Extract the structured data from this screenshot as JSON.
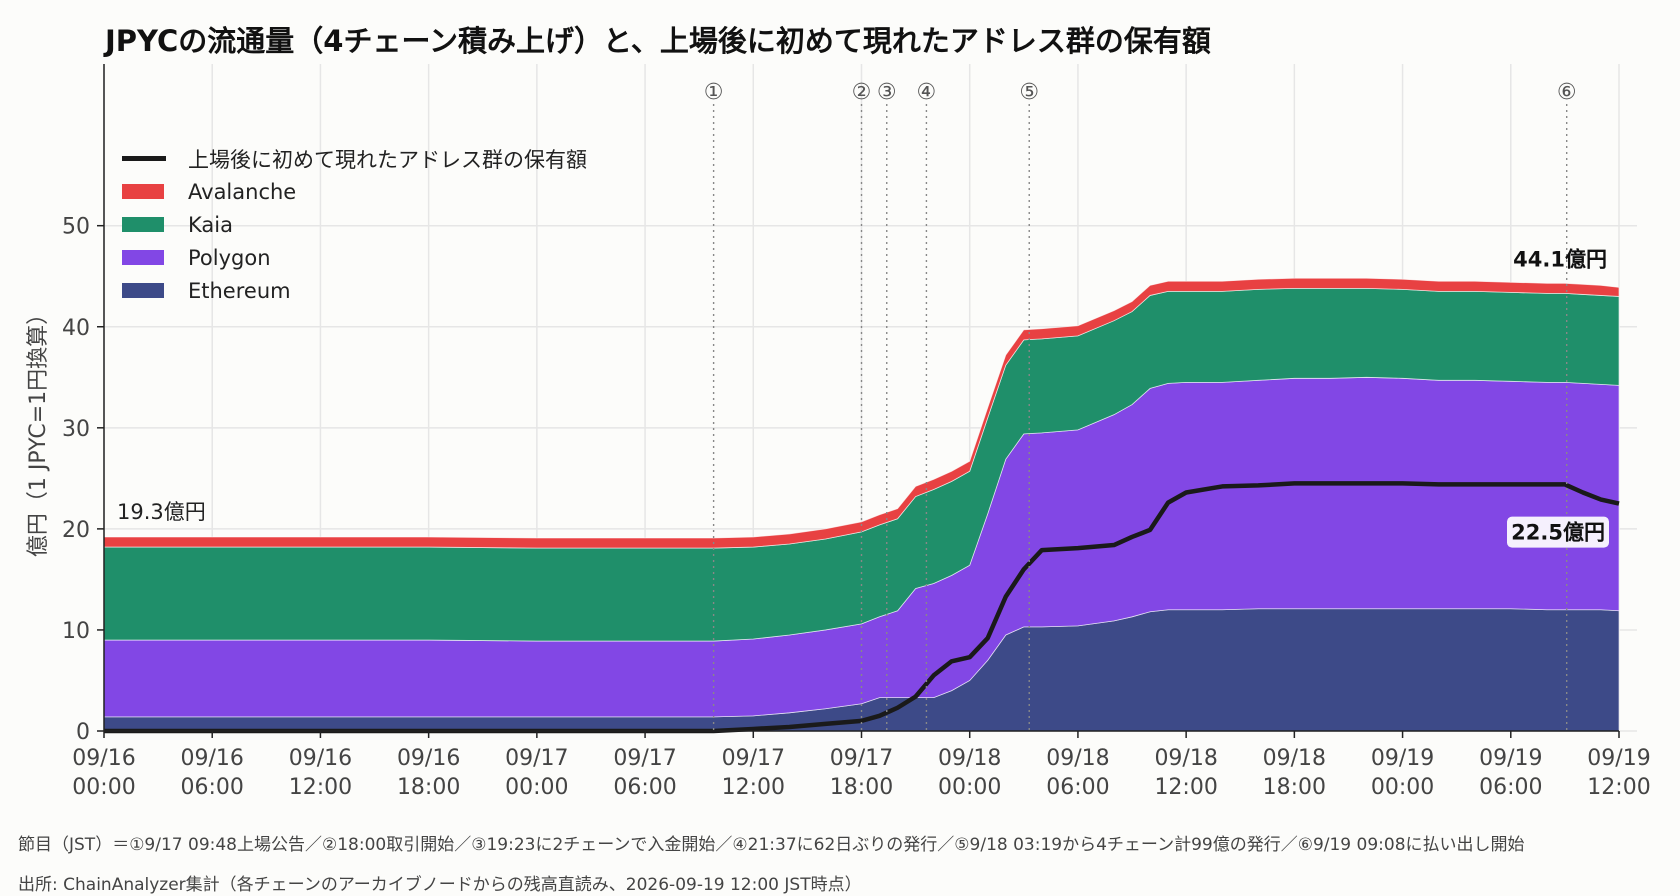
{
  "title": "JPYCの流通量（4チェーン積み上げ）と、上場後に初めて現れたアドレス群の保有額",
  "ylabel": "億円（1 JPYC=1円換算）",
  "footnote_events": "節目（JST）＝①9/17 09:48上場公告／②18:00取引開始／③19:23に2チェーンで入金開始／④21:37に62日ぶりの発行／⑤9/18 03:19から4チェーン計99億の発行／⑥9/19 09:08に払い出し開始",
  "footnote_source": "出所: ChainAnalyzer集計（各チェーンのアーカイブノードからの残高直読み、2026-09-19 12:00 JST時点）",
  "colors": {
    "ethereum": "#3d4a88",
    "polygon": "#8247e5",
    "kaia": "#1f8f6a",
    "avalanche": "#e84142",
    "newaddr": "#1a1a1a",
    "grid": "#e6e6e6"
  },
  "chart_data": {
    "type": "area",
    "stacked": true,
    "x_unit": "hours since 09/16 00:00 JST",
    "xlim": [
      0,
      84
    ],
    "ylim": [
      0,
      66
    ],
    "yticks": [
      0,
      10,
      20,
      30,
      40,
      50
    ],
    "xticks": [
      {
        "h": 0,
        "line1": "09/16",
        "line2": "00:00"
      },
      {
        "h": 6,
        "line1": "09/16",
        "line2": "06:00"
      },
      {
        "h": 12,
        "line1": "09/16",
        "line2": "12:00"
      },
      {
        "h": 18,
        "line1": "09/16",
        "line2": "18:00"
      },
      {
        "h": 24,
        "line1": "09/17",
        "line2": "00:00"
      },
      {
        "h": 30,
        "line1": "09/17",
        "line2": "06:00"
      },
      {
        "h": 36,
        "line1": "09/17",
        "line2": "12:00"
      },
      {
        "h": 42,
        "line1": "09/17",
        "line2": "18:00"
      },
      {
        "h": 48,
        "line1": "09/18",
        "line2": "00:00"
      },
      {
        "h": 54,
        "line1": "09/18",
        "line2": "06:00"
      },
      {
        "h": 60,
        "line1": "09/18",
        "line2": "12:00"
      },
      {
        "h": 66,
        "line1": "09/18",
        "line2": "18:00"
      },
      {
        "h": 72,
        "line1": "09/19",
        "line2": "00:00"
      },
      {
        "h": 78,
        "line1": "09/19",
        "line2": "06:00"
      },
      {
        "h": 84,
        "line1": "09/19",
        "line2": "12:00"
      }
    ],
    "x": [
      0,
      6,
      12,
      18,
      24,
      30,
      33.8,
      36,
      38,
      40,
      42,
      43,
      44,
      45,
      46,
      47,
      48,
      49,
      50,
      51,
      52,
      54,
      56,
      57,
      58,
      59,
      60,
      62,
      64,
      66,
      68,
      70,
      72,
      74,
      76,
      78,
      80,
      81,
      82,
      83,
      84
    ],
    "series": [
      {
        "name": "Ethereum",
        "key": "ethereum",
        "values": [
          1.4,
          1.4,
          1.4,
          1.4,
          1.4,
          1.4,
          1.4,
          1.5,
          1.8,
          2.2,
          2.7,
          3.3,
          3.3,
          3.3,
          3.3,
          4.0,
          5.0,
          7.0,
          9.5,
          10.3,
          10.3,
          10.4,
          10.9,
          11.3,
          11.8,
          12.0,
          12.0,
          12.0,
          12.1,
          12.1,
          12.1,
          12.1,
          12.1,
          12.1,
          12.1,
          12.1,
          12.0,
          12.0,
          12.0,
          12.0,
          11.9
        ]
      },
      {
        "name": "Polygon",
        "key": "polygon",
        "values": [
          7.6,
          7.6,
          7.6,
          7.6,
          7.5,
          7.5,
          7.5,
          7.6,
          7.7,
          7.8,
          7.9,
          8.0,
          8.6,
          10.8,
          11.3,
          11.4,
          11.4,
          14.5,
          17.4,
          19.1,
          19.2,
          19.4,
          20.4,
          21.0,
          22.1,
          22.4,
          22.5,
          22.5,
          22.6,
          22.8,
          22.8,
          22.9,
          22.8,
          22.6,
          22.6,
          22.5,
          22.5,
          22.5,
          22.4,
          22.3,
          22.3
        ]
      },
      {
        "name": "Kaia",
        "key": "kaia",
        "values": [
          9.2,
          9.2,
          9.2,
          9.2,
          9.2,
          9.2,
          9.2,
          9.1,
          9.0,
          9.0,
          9.1,
          9.1,
          9.1,
          9.1,
          9.3,
          9.3,
          9.3,
          9.5,
          9.3,
          9.3,
          9.3,
          9.3,
          9.3,
          9.2,
          9.2,
          9.1,
          9.0,
          9.0,
          9.0,
          8.9,
          8.9,
          8.8,
          8.8,
          8.8,
          8.8,
          8.8,
          8.8,
          8.8,
          8.8,
          8.8,
          8.8
        ]
      },
      {
        "name": "Avalanche",
        "key": "avalanche",
        "values": [
          1.0,
          1.0,
          1.0,
          1.0,
          1.0,
          1.0,
          1.0,
          1.0,
          1.0,
          1.0,
          1.0,
          1.0,
          1.0,
          1.0,
          1.0,
          1.0,
          1.0,
          1.0,
          1.0,
          1.0,
          1.0,
          1.0,
          1.0,
          1.0,
          1.0,
          1.0,
          1.0,
          1.0,
          1.0,
          1.0,
          1.0,
          1.0,
          1.0,
          1.0,
          1.0,
          1.0,
          1.0,
          1.0,
          1.0,
          1.0,
          0.9
        ]
      }
    ],
    "line": {
      "name": "上場後に初めて現れたアドレス群の保有額",
      "key": "newaddr",
      "values": [
        0,
        0,
        0,
        0,
        0,
        0,
        0,
        0.2,
        0.4,
        0.7,
        1.0,
        1.5,
        2.3,
        3.4,
        5.5,
        6.9,
        7.3,
        9.2,
        13.3,
        16.0,
        17.9,
        18.1,
        18.4,
        19.2,
        19.9,
        22.6,
        23.6,
        24.2,
        24.3,
        24.5,
        24.5,
        24.5,
        24.5,
        24.4,
        24.4,
        24.4,
        24.4,
        24.4,
        23.6,
        22.9,
        22.5
      ]
    },
    "events": [
      {
        "label": "①",
        "h": 33.8
      },
      {
        "label": "②",
        "h": 42
      },
      {
        "label": "③",
        "h": 43.4
      },
      {
        "label": "④",
        "h": 45.6
      },
      {
        "label": "⑤",
        "h": 51.3
      },
      {
        "label": "⑥",
        "h": 81.1
      }
    ],
    "annotations": {
      "start_total": "19.3億円",
      "end_total": "44.1億円",
      "end_line": "22.5億円"
    },
    "legend_position": "top-left",
    "grid": true
  }
}
